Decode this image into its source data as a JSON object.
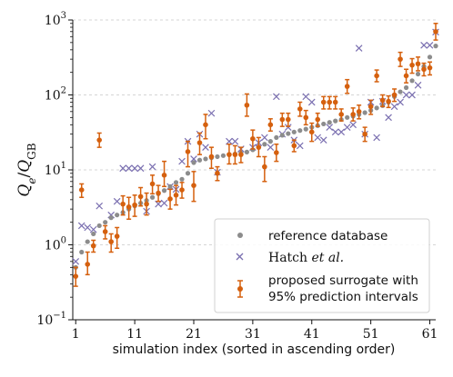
{
  "chart_data": {
    "type": "scatter",
    "xlabel": "simulation index (sorted in ascending order)",
    "ylabel": "Q_e/Q_GB",
    "ylabel_parts": {
      "main": "Q",
      "sub1": "e",
      "slash": "/",
      "main2": "Q",
      "sub2": "GB"
    },
    "yscale": "log",
    "xlim": [
      0.5,
      62
    ],
    "ylim": [
      0.1,
      1000
    ],
    "x_ticks": [
      1,
      11,
      21,
      31,
      41,
      51,
      61
    ],
    "y_ticks": [
      {
        "value": 0.1,
        "base": "10",
        "exp": "−1"
      },
      {
        "value": 1,
        "base": "10",
        "exp": "0"
      },
      {
        "value": 10,
        "base": "10",
        "exp": "1"
      },
      {
        "value": 100,
        "base": "10",
        "exp": "2"
      },
      {
        "value": 1000,
        "base": "10",
        "exp": "3"
      }
    ],
    "grid": "horizontal dashed",
    "legend_position": "bottom-right",
    "colors": {
      "reference": "#8c8c8c",
      "hatch": "#7a6fb0",
      "surrogate": "#d5600e",
      "grid": "#c8c8c8"
    },
    "series": [
      {
        "name": "reference database",
        "marker": "circle",
        "x": [
          1,
          2,
          3,
          4,
          5,
          6,
          7,
          8,
          9,
          10,
          11,
          12,
          13,
          14,
          15,
          16,
          17,
          18,
          19,
          20,
          21,
          22,
          23,
          24,
          25,
          26,
          27,
          28,
          29,
          30,
          31,
          32,
          33,
          34,
          35,
          36,
          37,
          38,
          39,
          40,
          41,
          42,
          43,
          44,
          45,
          46,
          47,
          48,
          49,
          50,
          51,
          52,
          53,
          54,
          55,
          56,
          57,
          58,
          59,
          60,
          61,
          62
        ],
        "y": [
          0.5,
          0.8,
          1.1,
          1.4,
          1.8,
          2.0,
          2.3,
          2.5,
          2.7,
          3.0,
          3.3,
          3.6,
          3.9,
          4.3,
          4.8,
          5.3,
          6.0,
          6.8,
          7.5,
          9.0,
          12.5,
          13.5,
          14.0,
          14.5,
          15.0,
          15.5,
          16.0,
          16.3,
          16.8,
          17.3,
          18.5,
          20.0,
          22.0,
          24.0,
          27.0,
          29.0,
          30.5,
          32.0,
          33.5,
          35.0,
          37.0,
          39.0,
          41.0,
          43.0,
          45.0,
          47.0,
          50.0,
          52.0,
          55.0,
          58.0,
          62.0,
          67.0,
          72.0,
          80.0,
          95.0,
          110.0,
          125.0,
          155.0,
          190.0,
          240.0,
          320.0,
          450.0
        ]
      },
      {
        "name": "Hatch et al.",
        "marker": "x",
        "x": [
          1,
          2,
          3,
          4,
          5,
          7,
          8,
          9,
          10,
          11,
          12,
          13,
          14,
          15,
          16,
          17,
          18,
          19,
          20,
          21,
          22,
          23,
          24,
          25,
          27,
          28,
          29,
          31,
          32,
          33,
          34,
          35,
          36,
          37,
          38,
          39,
          40,
          41,
          42,
          43,
          44,
          45,
          46,
          47,
          48,
          49,
          50,
          51,
          52,
          53,
          54,
          55,
          56,
          57,
          58,
          59,
          60,
          61,
          62
        ],
        "y": [
          0.6,
          1.8,
          1.7,
          1.6,
          3.3,
          2.5,
          3.8,
          10.5,
          10.5,
          10.5,
          10.5,
          2.8,
          11.0,
          3.5,
          3.6,
          6.0,
          5.5,
          13.0,
          24.0,
          14.0,
          30.0,
          20.0,
          57.0,
          9.3,
          24.0,
          24.0,
          19.0,
          20.0,
          23.0,
          27.0,
          20.0,
          95.0,
          30.0,
          37.0,
          25.0,
          21.0,
          95.0,
          80.0,
          27.0,
          25.0,
          37.0,
          32.0,
          32.0,
          37.0,
          40.0,
          420.0,
          30.0,
          80.0,
          27.0,
          82.0,
          50.0,
          70.0,
          80.0,
          100.0,
          100.0,
          135.0,
          460.0,
          460.0,
          690.0
        ]
      },
      {
        "name": "proposed surrogate with 95% prediction intervals",
        "marker": "errorbar",
        "x": [
          1,
          2,
          3,
          4,
          5,
          6,
          7,
          8,
          9,
          10,
          11,
          12,
          13,
          14,
          15,
          16,
          17,
          18,
          19,
          20,
          21,
          22,
          23,
          24,
          25,
          27,
          28,
          29,
          30,
          31,
          32,
          33,
          34,
          35,
          36,
          37,
          38,
          39,
          40,
          41,
          42,
          43,
          44,
          45,
          46,
          47,
          48,
          49,
          50,
          51,
          52,
          53,
          54,
          55,
          56,
          57,
          58,
          59,
          60,
          61,
          62
        ],
        "y": [
          0.38,
          5.4,
          0.55,
          0.97,
          25.0,
          1.5,
          1.1,
          1.3,
          3.5,
          3.2,
          3.4,
          4.4,
          3.5,
          6.5,
          4.9,
          8.5,
          4.1,
          4.6,
          5.4,
          17.5,
          6.2,
          23.0,
          40.0,
          15.0,
          9.0,
          16.0,
          16.0,
          16.0,
          73.0,
          26.0,
          20.0,
          11.0,
          40.0,
          17.0,
          47.0,
          47.0,
          21.0,
          65.0,
          50.0,
          32.0,
          47.0,
          80.0,
          80.0,
          80.0,
          55.0,
          130.0,
          55.0,
          60.0,
          30.0,
          70.0,
          180.0,
          85.0,
          82.0,
          100.0,
          300.0,
          180.0,
          250.0,
          260.0,
          220.0,
          230.0,
          700.0
        ],
        "lower": [
          0.28,
          4.3,
          0.4,
          0.8,
          20.0,
          1.2,
          0.8,
          0.9,
          2.5,
          2.2,
          2.4,
          3.3,
          2.5,
          4.8,
          3.8,
          6.0,
          3.0,
          3.4,
          4.2,
          11.0,
          3.8,
          16.0,
          26.0,
          10.5,
          7.2,
          12.0,
          12.0,
          12.5,
          52.0,
          19.0,
          15.0,
          7.0,
          33.0,
          13.0,
          38.0,
          38.0,
          17.5,
          52.0,
          40.0,
          24.0,
          38.0,
          65.0,
          65.0,
          65.0,
          45.0,
          105.0,
          45.0,
          48.0,
          24.0,
          55.0,
          150.0,
          70.0,
          68.0,
          82.0,
          240.0,
          145.0,
          195.0,
          210.0,
          180.0,
          185.0,
          540.0
        ],
        "upper": [
          0.5,
          6.5,
          0.8,
          1.15,
          31.0,
          1.8,
          1.4,
          1.7,
          4.5,
          4.3,
          4.6,
          5.8,
          4.9,
          8.5,
          6.2,
          13.0,
          5.5,
          6.2,
          6.8,
          24.0,
          9.5,
          31.0,
          55.0,
          20.0,
          11.0,
          22.0,
          21.0,
          20.0,
          103.0,
          34.0,
          27.0,
          15.0,
          48.0,
          22.0,
          57.0,
          57.0,
          25.0,
          80.0,
          62.0,
          42.0,
          57.0,
          95.0,
          95.0,
          95.0,
          65.0,
          160.0,
          67.0,
          73.0,
          37.0,
          85.0,
          215.0,
          100.0,
          97.0,
          120.0,
          370.0,
          220.0,
          305.0,
          320.0,
          265.0,
          275.0,
          900.0
        ]
      }
    ],
    "legend": {
      "reference": "reference database",
      "hatch_main": "Hatch ",
      "hatch_italic": "et al.",
      "surrogate_line1": "proposed surrogate with",
      "surrogate_line2": "95% prediction intervals"
    }
  }
}
